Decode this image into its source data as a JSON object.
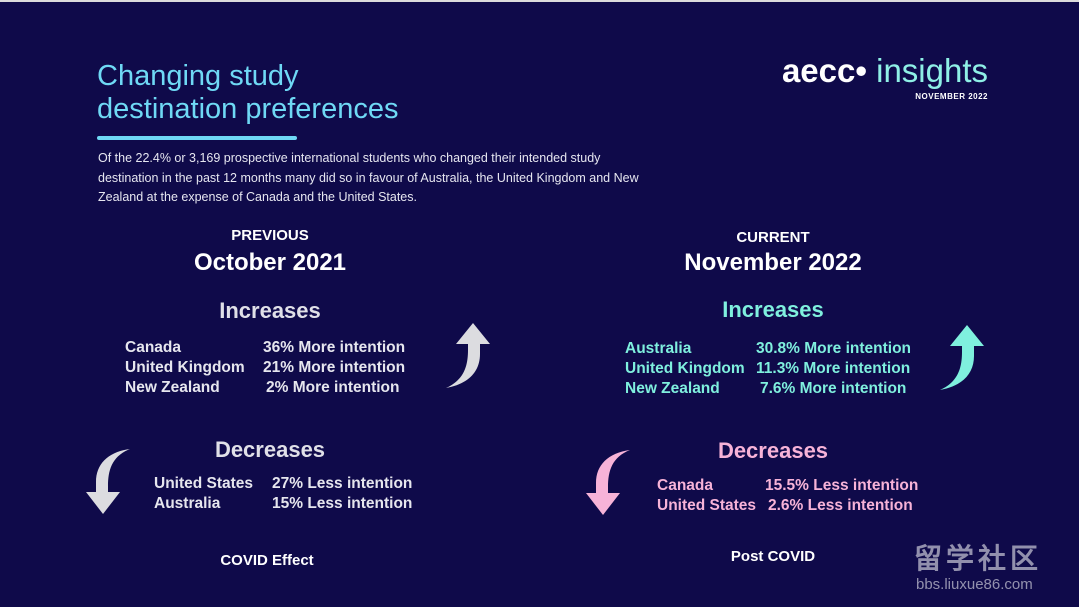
{
  "slide": {
    "title_line1": "Changing study",
    "title_line2": "destination preferences",
    "intro_line1": "Of the 22.4% or 3,169 prospective international students who changed their intended study",
    "intro_line2": "destination in the past 12 months many did so in favour of Australia, the United Kingdom and New",
    "intro_line3": "Zealand at the expense of Canada and the United States.",
    "logo": {
      "brand": "aecc",
      "brand_dot": "•",
      "product": " insights",
      "date": "NOVEMBER 2022"
    },
    "previous": {
      "label": "PREVIOUS",
      "period": "October 2021",
      "increases_heading": "Increases",
      "increases": [
        {
          "country": "Canada",
          "value": "36% More intention"
        },
        {
          "country": "United Kingdom",
          "value": "21% More intention"
        },
        {
          "country": "New Zealand",
          "value": "2% More intention"
        }
      ],
      "decreases_heading": "Decreases",
      "decreases": [
        {
          "country": "United States",
          "value": "27% Less intention"
        },
        {
          "country": "Australia",
          "value": "15% Less intention"
        }
      ],
      "footer": "COVID Effect"
    },
    "current": {
      "label": "CURRENT",
      "period": "November 2022",
      "increases_heading": "Increases",
      "increases": [
        {
          "country": "Australia",
          "value": "30.8% More intention"
        },
        {
          "country": "United Kingdom",
          "value": "11.3% More intention"
        },
        {
          "country": "New Zealand",
          "value": "7.6% More intention"
        }
      ],
      "decreases_heading": "Decreases",
      "decreases": [
        {
          "country": "Canada",
          "value": "15.5% Less intention"
        },
        {
          "country": "United States",
          "value": "2.6% Less intention"
        }
      ],
      "footer": "Post COVID"
    },
    "colors": {
      "background": "#0f0a4a",
      "title": "#6fd9f5",
      "increase_current": "#7ff0de",
      "decrease_current": "#f7b3d8",
      "previous_text": "#e6e6ee",
      "arrow_previous": "#dcdce0"
    },
    "icons": {
      "up_arrow_previous": "curved-up-arrow-icon",
      "down_arrow_previous": "curved-down-arrow-icon",
      "up_arrow_current": "curved-up-arrow-icon",
      "down_arrow_current": "curved-down-arrow-icon"
    },
    "watermark": {
      "main": "留学社区",
      "url": "bbs.liuxue86.com"
    }
  }
}
